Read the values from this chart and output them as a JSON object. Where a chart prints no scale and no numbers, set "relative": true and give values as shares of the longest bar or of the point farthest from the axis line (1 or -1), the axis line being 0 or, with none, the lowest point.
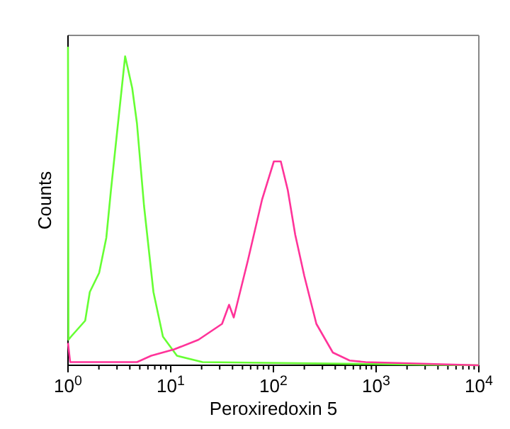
{
  "chart_data": {
    "type": "line",
    "xlabel": "Peroxiredoxin 5",
    "ylabel": "Counts",
    "relative": true,
    "log": "x",
    "grid": false,
    "marker": "none",
    "line_style": "solid",
    "xlim": [
      1,
      10000
    ],
    "xticks": [
      {
        "value": 1,
        "label": "10$^{0}$"
      },
      {
        "value": 2,
        "label": null
      },
      {
        "value": 3,
        "label": null
      },
      {
        "value": 4,
        "label": null
      },
      {
        "value": 5,
        "label": null
      },
      {
        "value": 6,
        "label": null
      },
      {
        "value": 7,
        "label": null
      },
      {
        "value": 8,
        "label": null
      },
      {
        "value": 9,
        "label": null
      },
      {
        "value": 10,
        "label": "10$^{1}$"
      },
      {
        "value": 20,
        "label": null
      },
      {
        "value": 30,
        "label": null
      },
      {
        "value": 40,
        "label": null
      },
      {
        "value": 50,
        "label": null
      },
      {
        "value": 60,
        "label": null
      },
      {
        "value": 70,
        "label": null
      },
      {
        "value": 80,
        "label": null
      },
      {
        "value": 90,
        "label": null
      },
      {
        "value": 100,
        "label": "10$^{2}$"
      },
      {
        "value": 200,
        "label": null
      },
      {
        "value": 300,
        "label": null
      },
      {
        "value": 400,
        "label": null
      },
      {
        "value": 500,
        "label": null
      },
      {
        "value": 600,
        "label": null
      },
      {
        "value": 700,
        "label": null
      },
      {
        "value": 800,
        "label": null
      },
      {
        "value": 900,
        "label": null
      },
      {
        "value": 1000,
        "label": "10$^{3}$"
      },
      {
        "value": 2000,
        "label": null
      },
      {
        "value": 3000,
        "label": null
      },
      {
        "value": 4000,
        "label": null
      },
      {
        "value": 5000,
        "label": null
      },
      {
        "value": 6000,
        "label": null
      },
      {
        "value": 7000,
        "label": null
      },
      {
        "value": 8000,
        "label": null
      },
      {
        "value": 9000,
        "label": null
      },
      {
        "value": 10000,
        "label": "10$^{4}$"
      }
    ],
    "series": [
      {
        "color": "#66ff33",
        "x": [
          1,
          1.01,
          1.07,
          1.47,
          1.63,
          2.01,
          2.36,
          2.62,
          3.07,
          3.6,
          4.22,
          4.69,
          5.5,
          6.79,
          8.4,
          11.5,
          20.4,
          10000
        ],
        "values": [
          1,
          0.08,
          0.09,
          0.14,
          0.23,
          0.29,
          0.4,
          0.55,
          0.76,
          0.97,
          0.87,
          0.76,
          0.5,
          0.23,
          0.09,
          0.03,
          0.01,
          0
        ]
      },
      {
        "color": "#ff3399",
        "x": [
          1,
          1.05,
          1.6,
          4.7,
          6.45,
          10.8,
          18.6,
          31.6,
          37,
          41.1,
          56.5,
          77.5,
          101,
          118,
          138,
          163,
          200,
          262,
          379,
          552,
          790,
          10000
        ],
        "values": [
          0.07,
          0.01,
          0.01,
          0.01,
          0.03,
          0.05,
          0.08,
          0.13,
          0.19,
          0.15,
          0.33,
          0.52,
          0.64,
          0.64,
          0.55,
          0.41,
          0.28,
          0.13,
          0.04,
          0.015,
          0.01,
          0
        ]
      }
    ]
  }
}
